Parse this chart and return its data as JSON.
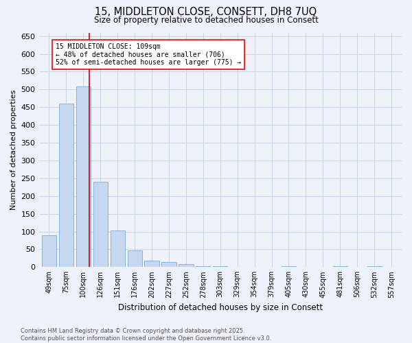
{
  "title_line1": "15, MIDDLETON CLOSE, CONSETT, DH8 7UQ",
  "title_line2": "Size of property relative to detached houses in Consett",
  "xlabel": "Distribution of detached houses by size in Consett",
  "ylabel": "Number of detached properties",
  "categories": [
    "49sqm",
    "75sqm",
    "100sqm",
    "126sqm",
    "151sqm",
    "176sqm",
    "202sqm",
    "227sqm",
    "252sqm",
    "278sqm",
    "303sqm",
    "329sqm",
    "354sqm",
    "379sqm",
    "405sqm",
    "430sqm",
    "455sqm",
    "481sqm",
    "506sqm",
    "532sqm",
    "557sqm"
  ],
  "values": [
    90,
    460,
    508,
    240,
    103,
    47,
    18,
    14,
    8,
    3,
    3,
    0,
    0,
    0,
    3,
    0,
    0,
    3,
    0,
    3,
    0
  ],
  "bar_color": "#c5d8f0",
  "bar_edge_color": "#7aaadc",
  "annotation_text": "15 MIDDLETON CLOSE: 109sqm\n← 48% of detached houses are smaller (706)\n52% of semi-detached houses are larger (775) →",
  "vline_color": "#cc0000",
  "ylim": [
    0,
    660
  ],
  "yticks": [
    0,
    50,
    100,
    150,
    200,
    250,
    300,
    350,
    400,
    450,
    500,
    550,
    600,
    650
  ],
  "footer_line1": "Contains HM Land Registry data © Crown copyright and database right 2025.",
  "footer_line2": "Contains public sector information licensed under the Open Government Licence v3.0.",
  "background_color": "#eef2fa",
  "grid_color": "#c8d4e8"
}
